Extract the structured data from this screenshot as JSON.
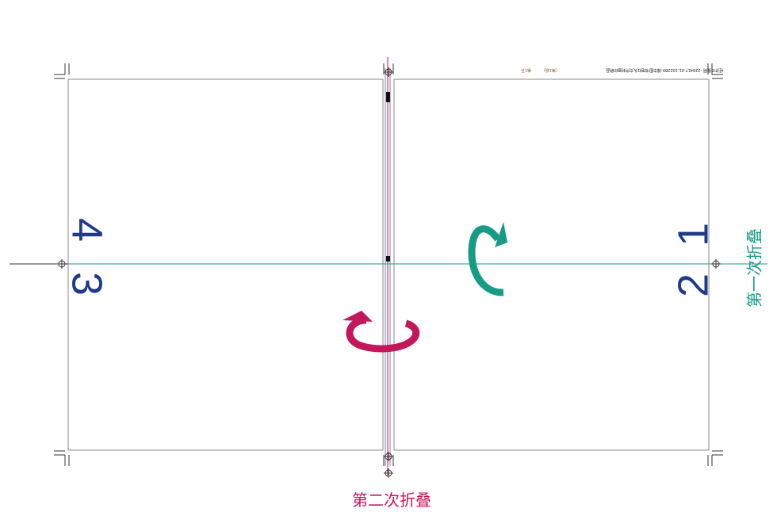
{
  "imposition": {
    "pages": {
      "p1": "1",
      "p2": "2",
      "p3": "3",
      "p4": "4"
    },
    "fold_labels": {
      "first_fold": "第一次折叠",
      "second_fold": "第二次折叠"
    },
    "header_strip": {
      "job_info": "经济日报网 -220417.01.102280-湘华图书馆红头文件封面印刷品",
      "plate": "(第1版)",
      "sheet": "第1页"
    }
  },
  "colors": {
    "first_fold": "#169b85",
    "second_fold": "#c2185b",
    "page_numbers": "#1f3a8a",
    "trim": "#888888"
  }
}
